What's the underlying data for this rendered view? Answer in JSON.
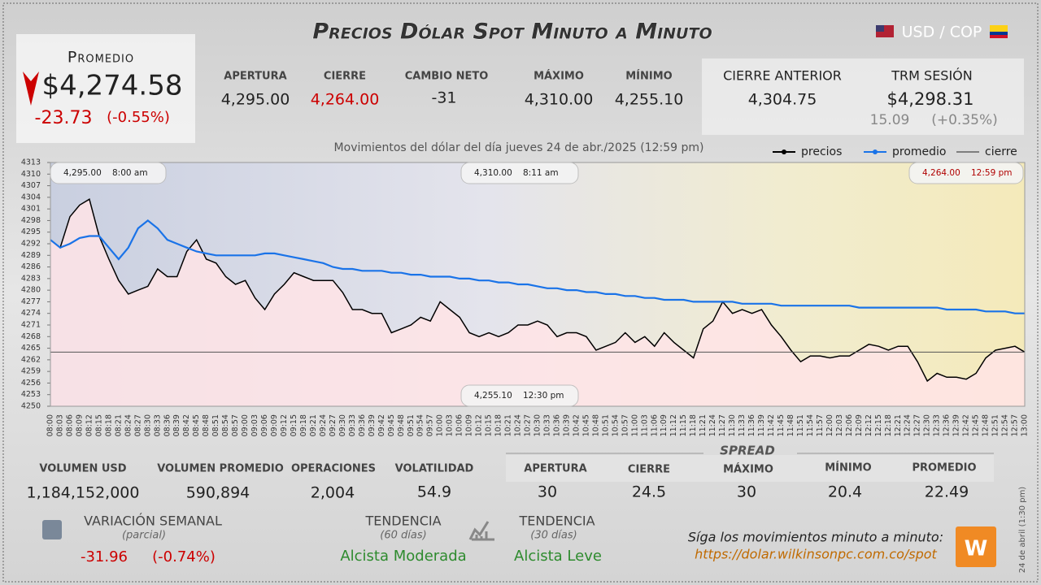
{
  "header": {
    "title": "Precios Dólar Spot Minuto a Minuto",
    "pair": "USD / COP"
  },
  "promedio": {
    "label": "Promedio",
    "value": "$4,274.58",
    "change": "-23.73",
    "change_pct": "(-0.55%)"
  },
  "day_stats": [
    {
      "label": "APERTURA",
      "value": "4,295.00"
    },
    {
      "label": "CIERRE",
      "value": "4,264.00"
    },
    {
      "label": "CAMBIO NETO",
      "value": "-31"
    },
    {
      "label": "MÁXIMO",
      "value": "4,310.00"
    },
    {
      "label": "MÍNIMO",
      "value": "4,255.10"
    }
  ],
  "cierre_anterior": {
    "label": "CIERRE ANTERIOR",
    "value": "4,304.75"
  },
  "trm": {
    "label": "TRM SESIÓN",
    "value": "$4,298.31",
    "change": "15.09",
    "change_pct": "(+0.35%)"
  },
  "chart_data": {
    "type": "line",
    "title": "Movimientos del dólar del día jueves 24 de abr./2025 (12:59 pm)",
    "categories": [
      "08:00",
      "08:03",
      "08:06",
      "08:09",
      "08:12",
      "08:15",
      "08:18",
      "08:21",
      "08:24",
      "08:27",
      "08:30",
      "08:33",
      "08:36",
      "08:39",
      "08:42",
      "08:45",
      "08:48",
      "08:51",
      "08:54",
      "08:57",
      "09:00",
      "09:03",
      "09:06",
      "09:09",
      "09:12",
      "09:15",
      "09:18",
      "09:21",
      "09:24",
      "09:27",
      "09:30",
      "09:33",
      "09:36",
      "09:39",
      "09:42",
      "09:45",
      "09:48",
      "09:51",
      "09:54",
      "09:57",
      "10:00",
      "10:03",
      "10:06",
      "10:09",
      "10:12",
      "10:15",
      "10:18",
      "10:21",
      "10:24",
      "10:27",
      "10:30",
      "10:33",
      "10:36",
      "10:39",
      "10:42",
      "10:45",
      "10:48",
      "10:51",
      "10:54",
      "10:57",
      "11:00",
      "11:03",
      "11:06",
      "11:09",
      "11:12",
      "11:15",
      "11:18",
      "11:21",
      "11:24",
      "11:27",
      "11:30",
      "11:33",
      "11:36",
      "11:39",
      "11:42",
      "11:45",
      "11:48",
      "11:51",
      "11:54",
      "11:57",
      "12:00",
      "12:03",
      "12:06",
      "12:09",
      "12:12",
      "12:15",
      "12:18",
      "12:21",
      "12:24",
      "12:27",
      "12:30",
      "12:33",
      "12:36",
      "12:39",
      "12:42",
      "12:45",
      "12:48",
      "12:51",
      "12:54",
      "12:57",
      "13:00"
    ],
    "series": [
      {
        "name": "precios",
        "color": "#000000",
        "values": [
          4293,
          4291,
          4299,
          4302,
          4303.5,
          4294,
          4288,
          4282.5,
          4279,
          4280,
          4281,
          4285.5,
          4283.5,
          4283.5,
          4290,
          4293,
          4288,
          4287,
          4283.5,
          4281.5,
          4282.5,
          4278,
          4275,
          4279,
          4281.5,
          4284.5,
          4283.5,
          4282.5,
          4282.5,
          4282.5,
          4279.4,
          4275,
          4275,
          4274,
          4274,
          4269,
          4270,
          4271,
          4273,
          4272,
          4277,
          4275,
          4273,
          4269,
          4268,
          4269,
          4268,
          4269,
          4271,
          4271,
          4272,
          4271,
          4268,
          4269,
          4269,
          4268,
          4264.5,
          4265.5,
          4266.5,
          4269,
          4266.5,
          4268,
          4265.5,
          4269,
          4266.5,
          4264.5,
          4262.5,
          4270,
          4272,
          4277,
          4274,
          4275,
          4274,
          4275,
          4271,
          4268,
          4264.5,
          4261.5,
          4263,
          4263,
          4262.5,
          4263,
          4263,
          4264.5,
          4266,
          4265.5,
          4264.5,
          4265.5,
          4265.5,
          4261.5,
          4256.5,
          4258.5,
          4257.5,
          4257.5,
          4257,
          4258.5,
          4262.5,
          4264.5,
          4265,
          4265.5,
          4264
        ]
      },
      {
        "name": "promedio",
        "color": "#1a73e8",
        "values": [
          4293,
          4291,
          4292,
          4293.5,
          4294,
          4294,
          4291,
          4288,
          4291,
          4296,
          4298,
          4296,
          4293,
          4292,
          4291,
          4290,
          4289.5,
          4289,
          4289,
          4289,
          4289,
          4289,
          4289.5,
          4289.5,
          4289,
          4288.5,
          4288,
          4287.5,
          4287,
          4286,
          4285.5,
          4285.5,
          4285,
          4285,
          4285,
          4284.5,
          4284.5,
          4284,
          4284,
          4283.5,
          4283.5,
          4283.5,
          4283,
          4283,
          4282.5,
          4282.5,
          4282,
          4282,
          4281.5,
          4281.5,
          4281,
          4280.5,
          4280.5,
          4280,
          4280,
          4279.5,
          4279.5,
          4279,
          4279,
          4278.5,
          4278.5,
          4278,
          4278,
          4277.5,
          4277.5,
          4277.5,
          4277,
          4277,
          4277,
          4277,
          4277,
          4276.5,
          4276.5,
          4276.5,
          4276.5,
          4276,
          4276,
          4276,
          4276,
          4276,
          4276,
          4276,
          4276,
          4275.5,
          4275.5,
          4275.5,
          4275.5,
          4275.5,
          4275.5,
          4275.5,
          4275.5,
          4275.5,
          4275,
          4275,
          4275,
          4275,
          4274.5,
          4274.5,
          4274.5,
          4274,
          4274
        ]
      }
    ],
    "reference_line": {
      "name": "cierre",
      "value": 4264,
      "color": "#555555"
    },
    "ylim": [
      4250,
      4313
    ],
    "yticks": [
      4250,
      4253,
      4256,
      4259,
      4262,
      4265,
      4268,
      4271,
      4274,
      4277,
      4280,
      4283,
      4286,
      4289,
      4292,
      4295,
      4298,
      4301,
      4304,
      4307,
      4310,
      4313
    ],
    "area_color": "#ffe4e6",
    "annotations": [
      {
        "price": "4,295.00",
        "time": "8:00 am",
        "corner": "top-left"
      },
      {
        "price": "4,310.00",
        "time": "8:11 am",
        "corner": "top-center"
      },
      {
        "price": "4,264.00",
        "time": "12:59 pm",
        "corner": "top-right"
      },
      {
        "price": "4,255.10",
        "time": "12:30 pm",
        "corner": "bottom-center"
      }
    ]
  },
  "volume_stats": [
    {
      "label": "VOLUMEN USD",
      "value": "1,184,152,000"
    },
    {
      "label": "VOLUMEN PROMEDIO",
      "value": "590,894"
    },
    {
      "label": "OPERACIONES",
      "value": "2,004"
    },
    {
      "label": "VOLATILIDAD",
      "value": "54.9"
    }
  ],
  "spread": {
    "title": "SPREAD",
    "items": [
      {
        "label": "APERTURA",
        "value": "30"
      },
      {
        "label": "CIERRE",
        "value": "24.5"
      },
      {
        "label": "MÁXIMO",
        "value": "30"
      },
      {
        "label": "MÍNIMO",
        "value": "20.4"
      },
      {
        "label": "PROMEDIO",
        "value": "22.49"
      }
    ]
  },
  "weekly": {
    "label": "VARIACIÓN SEMANAL",
    "sub": "(parcial)",
    "change": "-31.96",
    "change_pct": "(-0.74%)"
  },
  "trends": [
    {
      "label": "TENDENCIA",
      "sub": "(60 días)",
      "value": "Alcista Moderada"
    },
    {
      "label": "TENDENCIA",
      "sub": "(30 días)",
      "value": "Alcista Leve"
    }
  ],
  "footer": {
    "text": "Síga los movimientos minuto a minuto:",
    "url": "https://dolar.wilkinsonpc.com.co/spot",
    "timestamp": "24 de abril (1:30 pm)"
  }
}
